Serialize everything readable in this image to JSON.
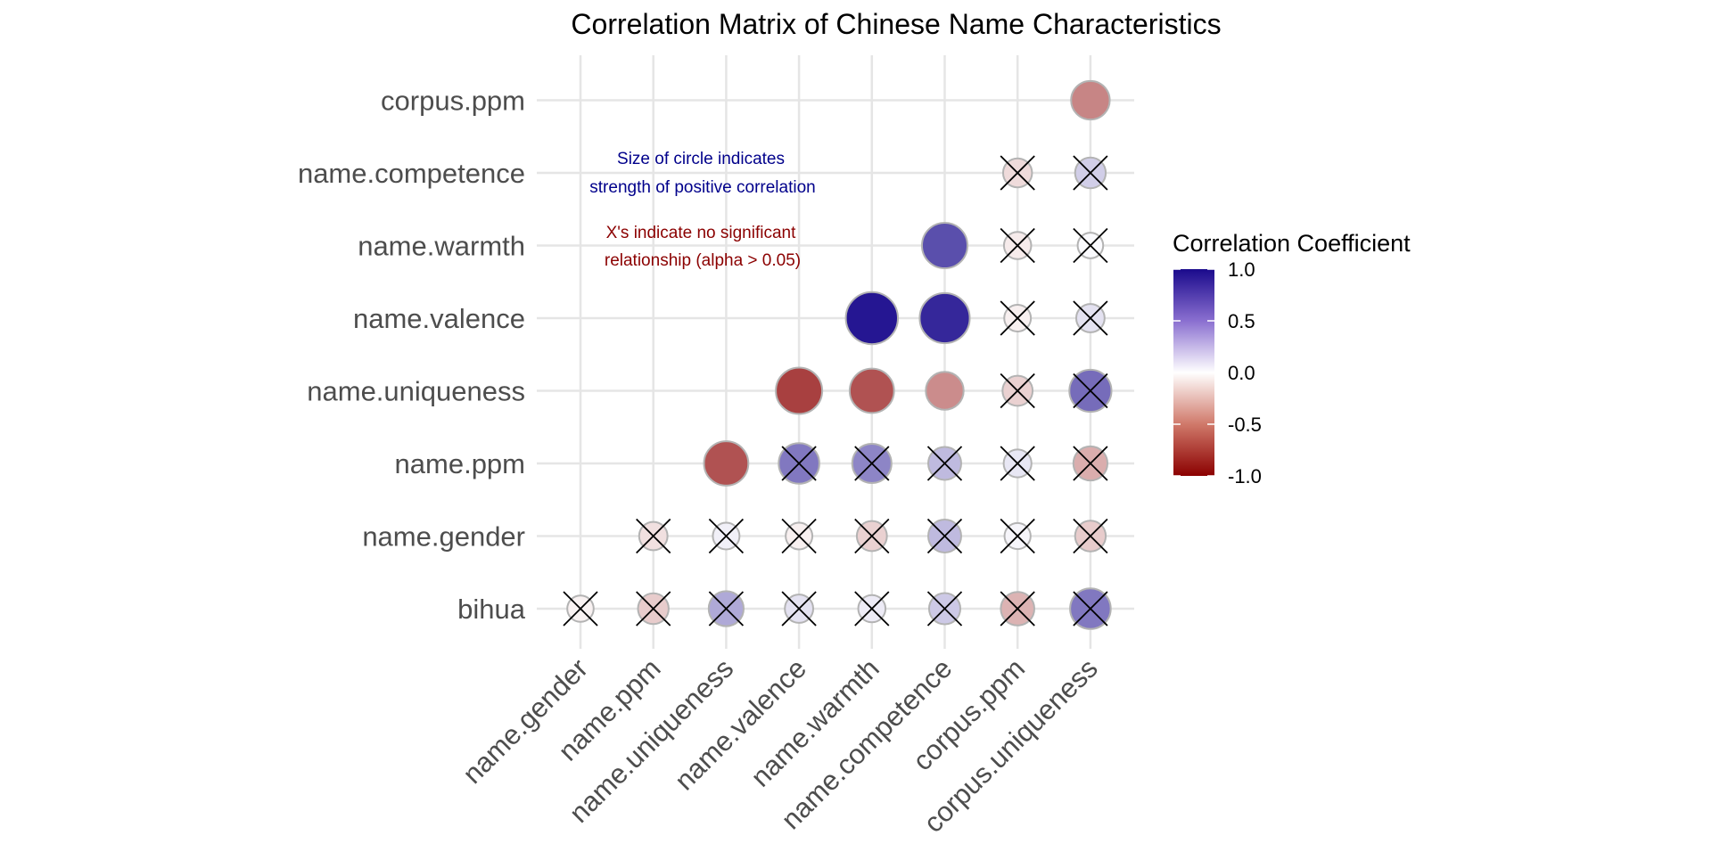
{
  "chart_data": {
    "type": "correlation-matrix",
    "title": "Correlation Matrix of Chinese Name Characteristics",
    "x_categories": [
      "name.gender",
      "name.ppm",
      "name.uniqueness",
      "name.valence",
      "name.warmth",
      "name.competence",
      "corpus.ppm",
      "corpus.uniqueness"
    ],
    "y_categories": [
      "bihua",
      "name.gender",
      "name.ppm",
      "name.uniqueness",
      "name.valence",
      "name.warmth",
      "name.competence",
      "corpus.ppm"
    ],
    "cells": [
      {
        "x": "name.gender",
        "y": "bihua",
        "r": -0.05,
        "significant": false
      },
      {
        "x": "name.ppm",
        "y": "bihua",
        "r": -0.2,
        "significant": false
      },
      {
        "x": "name.uniqueness",
        "y": "bihua",
        "r": 0.35,
        "significant": false
      },
      {
        "x": "name.valence",
        "y": "bihua",
        "r": 0.12,
        "significant": false
      },
      {
        "x": "name.warmth",
        "y": "bihua",
        "r": 0.08,
        "significant": false
      },
      {
        "x": "name.competence",
        "y": "bihua",
        "r": 0.22,
        "significant": false
      },
      {
        "x": "corpus.ppm",
        "y": "bihua",
        "r": -0.3,
        "significant": false
      },
      {
        "x": "corpus.uniqueness",
        "y": "bihua",
        "r": 0.55,
        "significant": false
      },
      {
        "x": "name.ppm",
        "y": "name.gender",
        "r": -0.12,
        "significant": false
      },
      {
        "x": "name.uniqueness",
        "y": "name.gender",
        "r": 0.06,
        "significant": false
      },
      {
        "x": "name.valence",
        "y": "name.gender",
        "r": -0.06,
        "significant": false
      },
      {
        "x": "name.warmth",
        "y": "name.gender",
        "r": -0.18,
        "significant": false
      },
      {
        "x": "name.competence",
        "y": "name.gender",
        "r": 0.28,
        "significant": false
      },
      {
        "x": "corpus.ppm",
        "y": "name.gender",
        "r": 0.04,
        "significant": false
      },
      {
        "x": "corpus.uniqueness",
        "y": "name.gender",
        "r": -0.2,
        "significant": false
      },
      {
        "x": "name.uniqueness",
        "y": "name.ppm",
        "r": -0.68,
        "significant": true
      },
      {
        "x": "name.valence",
        "y": "name.ppm",
        "r": 0.55,
        "significant": false
      },
      {
        "x": "name.warmth",
        "y": "name.ppm",
        "r": 0.5,
        "significant": false
      },
      {
        "x": "name.competence",
        "y": "name.ppm",
        "r": 0.28,
        "significant": false
      },
      {
        "x": "corpus.ppm",
        "y": "name.ppm",
        "r": 0.1,
        "significant": false
      },
      {
        "x": "corpus.uniqueness",
        "y": "name.ppm",
        "r": -0.32,
        "significant": false
      },
      {
        "x": "name.valence",
        "y": "name.uniqueness",
        "r": -0.75,
        "significant": true
      },
      {
        "x": "name.warmth",
        "y": "name.uniqueness",
        "r": -0.68,
        "significant": true
      },
      {
        "x": "name.competence",
        "y": "name.uniqueness",
        "r": -0.45,
        "significant": true
      },
      {
        "x": "corpus.ppm",
        "y": "name.uniqueness",
        "r": -0.18,
        "significant": false
      },
      {
        "x": "corpus.uniqueness",
        "y": "name.uniqueness",
        "r": 0.6,
        "significant": false
      },
      {
        "x": "name.warmth",
        "y": "name.valence",
        "r": 0.95,
        "significant": true
      },
      {
        "x": "name.competence",
        "y": "name.valence",
        "r": 0.88,
        "significant": true
      },
      {
        "x": "corpus.ppm",
        "y": "name.valence",
        "r": -0.06,
        "significant": false
      },
      {
        "x": "corpus.uniqueness",
        "y": "name.valence",
        "r": 0.12,
        "significant": false
      },
      {
        "x": "name.competence",
        "y": "name.warmth",
        "r": 0.72,
        "significant": true
      },
      {
        "x": "corpus.ppm",
        "y": "name.warmth",
        "r": -0.08,
        "significant": false
      },
      {
        "x": "corpus.uniqueness",
        "y": "name.warmth",
        "r": 0.02,
        "significant": false
      },
      {
        "x": "corpus.ppm",
        "y": "name.competence",
        "r": -0.14,
        "significant": false
      },
      {
        "x": "corpus.uniqueness",
        "y": "name.competence",
        "r": 0.2,
        "significant": false
      },
      {
        "x": "corpus.uniqueness",
        "y": "corpus.ppm",
        "r": -0.48,
        "significant": true
      }
    ],
    "annotations": {
      "size_note": [
        "Size of circle indicates",
        "strength of positive correlation"
      ],
      "x_note": [
        "X's indicate no significant",
        "relationship (alpha > 0.05)"
      ]
    },
    "legend": {
      "title": "Correlation Coefficient",
      "ticks": [
        "1.0",
        "0.5",
        "0.0",
        "-0.5",
        "-1.0"
      ],
      "tick_values": [
        1.0,
        0.5,
        0.0,
        -0.5,
        -1.0
      ],
      "range": [
        -1.0,
        1.0
      ],
      "placement": "right"
    },
    "colors": {
      "high": "#1a0a8c",
      "mid": "#ffffff",
      "low": "#8b0000",
      "size_note_color": "#00008b",
      "x_note_color": "#8b0000",
      "grid": "#e5e5e5",
      "axis_text": "#4d4d4d"
    },
    "grid": true
  }
}
